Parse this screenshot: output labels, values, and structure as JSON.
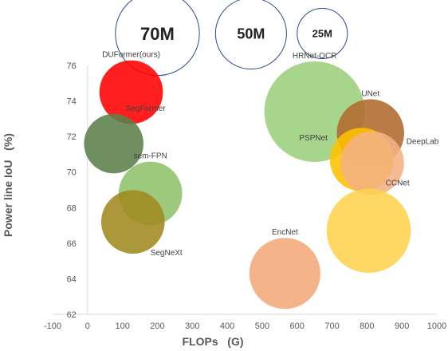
{
  "chart_data": {
    "type": "bubble",
    "xlabel": "FLOPs   (G)",
    "ylabel": "Power line IoU   (%)",
    "xlim": [
      -100,
      1000
    ],
    "ylim": [
      62,
      76
    ],
    "x_ticks": [
      "-100",
      "0",
      "100",
      "200",
      "300",
      "400",
      "500",
      "600",
      "700",
      "800",
      "900",
      "1000"
    ],
    "y_ticks": [
      "62",
      "64",
      "66",
      "68",
      "70",
      "72",
      "74",
      "76"
    ],
    "grid": false,
    "points": [
      {
        "label": "DUFormer(ours)",
        "x": 125,
        "y": 74.5,
        "size_m": 40,
        "color": "#ff0000",
        "label_pos": "above"
      },
      {
        "label": "SegFormer",
        "x": 75,
        "y": 71.6,
        "size_m": 35,
        "color": "#5c7f4a",
        "label_pos": "above-right"
      },
      {
        "label": "sem-FPN",
        "x": 180,
        "y": 68.8,
        "size_m": 40,
        "color": "#8fc26a",
        "label_pos": "above"
      },
      {
        "label": "SegNeXt",
        "x": 130,
        "y": 67.2,
        "size_m": 40,
        "color": "#a08a20",
        "label_pos": "below-right"
      },
      {
        "label": "HRNet-OCR",
        "x": 650,
        "y": 73.4,
        "size_m": 100,
        "color": "#9ccf7c",
        "label_pos": "above"
      },
      {
        "label": "UNet",
        "x": 810,
        "y": 72.2,
        "size_m": 45,
        "color": "#b06a2e",
        "label_pos": "above"
      },
      {
        "label": "PSPNet",
        "x": 785,
        "y": 70.7,
        "size_m": 40,
        "color": "#ffc000",
        "label_pos": "left"
      },
      {
        "label": "DeepLab",
        "x": 815,
        "y": 70.5,
        "size_m": 40,
        "color": "#f4b183",
        "label_pos": "right"
      },
      {
        "label": "CCNet",
        "x": 805,
        "y": 66.7,
        "size_m": 70,
        "color": "#ffd24d",
        "label_pos": "above-right"
      },
      {
        "label": "EncNet",
        "x": 565,
        "y": 64.3,
        "size_m": 50,
        "color": "#f4a97a",
        "label_pos": "above"
      }
    ],
    "size_legend": [
      {
        "label": "70M",
        "size_m": 70
      },
      {
        "label": "50M",
        "size_m": 50
      },
      {
        "label": "25M",
        "size_m": 25
      }
    ]
  }
}
